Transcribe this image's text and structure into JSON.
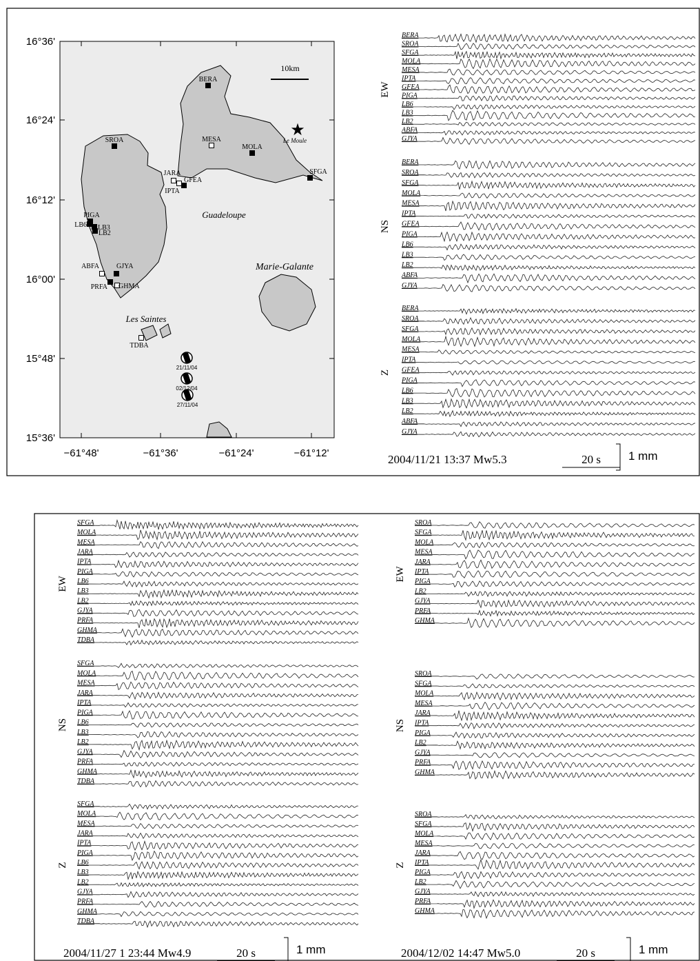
{
  "map": {
    "lat_labels": [
      "16°36'",
      "16°24'",
      "16°12'",
      "16°00'",
      "15°48'",
      "15°36'"
    ],
    "lon_labels": [
      "−61°48'",
      "−61°36'",
      "−61°24'",
      "−61°12'"
    ],
    "scale": "10km",
    "places": [
      "Guadeloupe",
      "Marie-Galante",
      "Les Saintes",
      "Le Moule"
    ],
    "stations": [
      "BERA",
      "SROA",
      "MESA",
      "MOLA",
      "SFGA",
      "JARA",
      "GFEA",
      "IPTA",
      "PIGA",
      "LB6",
      "LB3",
      "LB2",
      "ABFA",
      "GJYA",
      "PRFA",
      "GHMA",
      "TDBA"
    ],
    "mechanisms": [
      "21/11/04",
      "02/12/04",
      "27/11/04"
    ]
  },
  "panels": [
    {
      "caption": "2004/11/21 13:37 Mw5.3",
      "time_scale": "20 s",
      "amp_scale": "1 mm",
      "groups": [
        {
          "component": "EW",
          "stations": [
            "BERA",
            "SROA",
            "SFGA",
            "MOLA",
            "MESA",
            "IPTA",
            "GFEA",
            "PIGA",
            "LB6",
            "LB3",
            "LB2",
            "ABFA",
            "GJYA"
          ]
        },
        {
          "component": "NS",
          "stations": [
            "BERA",
            "SROA",
            "SFGA",
            "MOLA",
            "MESA",
            "IPTA",
            "GFEA",
            "PIGA",
            "LB6",
            "LB3",
            "LB2",
            "ABFA",
            "GJYA"
          ]
        },
        {
          "component": "Z",
          "stations": [
            "BERA",
            "SROA",
            "SFGA",
            "MOLA",
            "MESA",
            "IPTA",
            "GFEA",
            "PIGA",
            "LB6",
            "LB3",
            "LB2",
            "ABFA",
            "GJYA"
          ]
        }
      ]
    },
    {
      "caption": "2004/11/27 1 23:44 Mw4.9",
      "time_scale": "20 s",
      "amp_scale": "1 mm",
      "groups": [
        {
          "component": "EW",
          "stations": [
            "SFGA",
            "MOLA",
            "MESA",
            "JARA",
            "IPTA",
            "PIGA",
            "LB6",
            "LB3",
            "LB2",
            "GJYA",
            "PRFA",
            "GHMA",
            "TDBA"
          ]
        },
        {
          "component": "NS",
          "stations": [
            "SFGA",
            "MOLA",
            "MESA",
            "JARA",
            "IPTA",
            "PIGA",
            "LB6",
            "LB3",
            "LB2",
            "GJYA",
            "PRFA",
            "GHMA",
            "TDBA"
          ]
        },
        {
          "component": "Z",
          "stations": [
            "SFGA",
            "MOLA",
            "MESA",
            "JARA",
            "IPTA",
            "PIGA",
            "LB6",
            "LB3",
            "LB2",
            "GJYA",
            "PRFA",
            "GHMA",
            "TDBA"
          ]
        }
      ]
    },
    {
      "caption": "2004/12/02 14:47 Mw5.0",
      "time_scale": "20 s",
      "amp_scale": "1 mm",
      "groups": [
        {
          "component": "EW",
          "stations": [
            "SROA",
            "SFGA",
            "MOLA",
            "MESA",
            "JARA",
            "IPTA",
            "PIGA",
            "LB2",
            "GJYA",
            "PRFA",
            "GHMA"
          ]
        },
        {
          "component": "NS",
          "stations": [
            "SROA",
            "SFGA",
            "MOLA",
            "MESA",
            "JARA",
            "IPTA",
            "PIGA",
            "LB2",
            "GJYA",
            "PRFA",
            "GHMA"
          ]
        },
        {
          "component": "Z",
          "stations": [
            "SROA",
            "SFGA",
            "MOLA",
            "MESA",
            "JARA",
            "IPTA",
            "PIGA",
            "LB2",
            "GJYA",
            "PRFA",
            "GHMA"
          ]
        }
      ]
    }
  ]
}
